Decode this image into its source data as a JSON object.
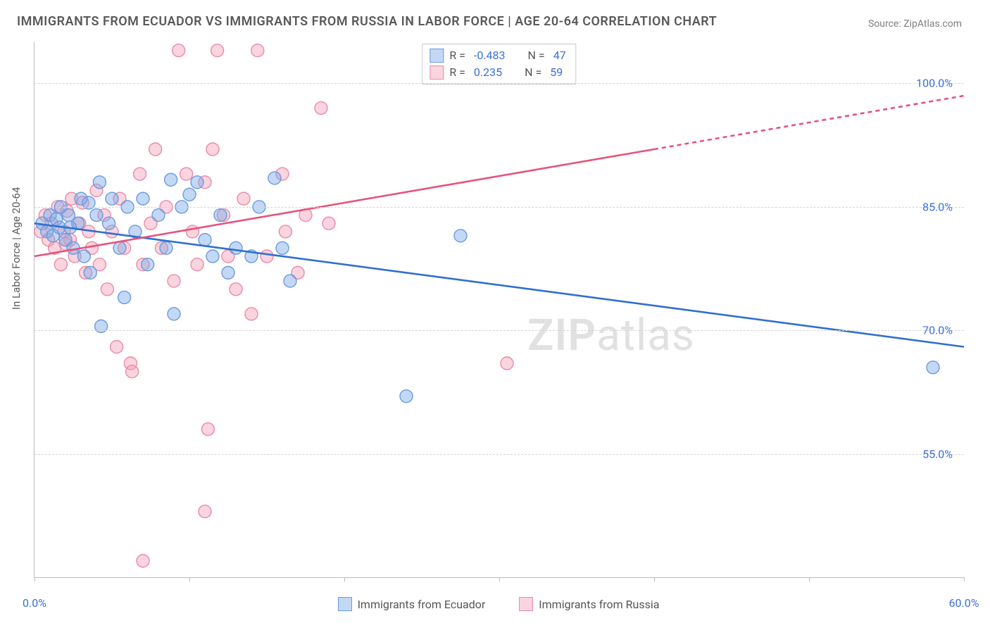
{
  "title": "IMMIGRANTS FROM ECUADOR VS IMMIGRANTS FROM RUSSIA IN LABOR FORCE | AGE 20-64 CORRELATION CHART",
  "source": "Source: ZipAtlas.com",
  "y_axis_label": "In Labor Force | Age 20-64",
  "watermark": "ZIPatlas",
  "chart": {
    "type": "scatter-with-regression",
    "xlim": [
      0,
      60
    ],
    "ylim": [
      40,
      105
    ],
    "x_ticks": [
      0,
      10,
      20,
      30,
      40,
      50,
      60
    ],
    "y_ticks": [
      55,
      70,
      85,
      100
    ],
    "x_tick_labels": {
      "0": "0.0%",
      "60": "60.0%"
    },
    "y_tick_labels": {
      "55": "55.0%",
      "70": "70.0%",
      "85": "85.0%",
      "100": "100.0%"
    },
    "grid_color": "#d5d5d5",
    "axis_color": "#bbbbbb",
    "plot_bg": "#ffffff",
    "tick_label_color": "#3b6fd6",
    "tick_label_fontsize": 16,
    "marker_radius": 9,
    "marker_stroke_width": 1.4,
    "line_width": 2.6
  },
  "series": {
    "ecuador": {
      "label": "Immigrants from Ecuador",
      "color_fill": "rgba(121,169,232,0.45)",
      "color_stroke": "#6a9be0",
      "line_color": "#2f6fd0",
      "R": "-0.483",
      "N": "47",
      "regression": {
        "x1": 0,
        "y1": 83.0,
        "x2": 60,
        "y2": 68.0,
        "dashed_from_x": null
      },
      "points": [
        [
          0.5,
          83
        ],
        [
          0.8,
          82
        ],
        [
          1.0,
          84
        ],
        [
          1.2,
          81.5
        ],
        [
          1.4,
          83.5
        ],
        [
          1.6,
          82.5
        ],
        [
          1.7,
          85
        ],
        [
          2.0,
          81
        ],
        [
          2.2,
          84
        ],
        [
          2.5,
          80
        ],
        [
          2.8,
          83
        ],
        [
          3.0,
          86
        ],
        [
          3.2,
          79
        ],
        [
          3.5,
          85.5
        ],
        [
          3.6,
          77
        ],
        [
          4.0,
          84
        ],
        [
          4.2,
          88
        ],
        [
          4.3,
          70.5
        ],
        [
          4.8,
          83
        ],
        [
          5.0,
          86
        ],
        [
          5.5,
          80
        ],
        [
          5.8,
          74
        ],
        [
          6.0,
          85
        ],
        [
          6.5,
          82
        ],
        [
          7.0,
          86
        ],
        [
          7.3,
          78
        ],
        [
          8.0,
          84
        ],
        [
          8.5,
          80
        ],
        [
          8.8,
          88.3
        ],
        [
          9.0,
          72
        ],
        [
          9.5,
          85
        ],
        [
          10.0,
          86.5
        ],
        [
          10.5,
          88
        ],
        [
          11.0,
          81
        ],
        [
          11.5,
          79
        ],
        [
          12.0,
          84
        ],
        [
          12.5,
          77
        ],
        [
          13.0,
          80
        ],
        [
          14.0,
          79
        ],
        [
          14.5,
          85
        ],
        [
          15.5,
          88.5
        ],
        [
          16.0,
          80
        ],
        [
          16.5,
          76
        ],
        [
          27.5,
          81.5
        ],
        [
          24.0,
          62
        ],
        [
          58.0,
          65.5
        ],
        [
          2.3,
          82.5
        ]
      ]
    },
    "russia": {
      "label": "Immigrants from Russia",
      "color_fill": "rgba(244,160,185,0.45)",
      "color_stroke": "#e98ba6",
      "line_color": "#e5537c",
      "R": "0.235",
      "N": "59",
      "regression": {
        "x1": 0,
        "y1": 79.0,
        "x2": 60,
        "y2": 98.5,
        "dashed_from_x": 40
      },
      "points": [
        [
          0.4,
          82
        ],
        [
          0.7,
          84
        ],
        [
          0.9,
          81
        ],
        [
          1.1,
          83
        ],
        [
          1.3,
          80
        ],
        [
          1.5,
          85
        ],
        [
          1.7,
          78
        ],
        [
          1.9,
          82
        ],
        [
          2.1,
          84.5
        ],
        [
          2.3,
          81
        ],
        [
          2.4,
          86
        ],
        [
          2.6,
          79
        ],
        [
          2.9,
          83
        ],
        [
          3.1,
          85.5
        ],
        [
          3.3,
          77
        ],
        [
          3.5,
          82
        ],
        [
          3.7,
          80
        ],
        [
          4.0,
          87
        ],
        [
          4.2,
          78
        ],
        [
          4.5,
          84
        ],
        [
          4.7,
          75
        ],
        [
          5.0,
          82
        ],
        [
          5.3,
          68
        ],
        [
          5.5,
          86
        ],
        [
          5.8,
          80
        ],
        [
          6.2,
          66
        ],
        [
          6.3,
          65
        ],
        [
          6.8,
          89
        ],
        [
          7.0,
          78
        ],
        [
          7.5,
          83
        ],
        [
          7.8,
          92
        ],
        [
          8.2,
          80
        ],
        [
          8.5,
          85
        ],
        [
          9.0,
          76
        ],
        [
          9.3,
          104
        ],
        [
          9.8,
          89
        ],
        [
          10.2,
          82
        ],
        [
          10.5,
          78
        ],
        [
          11.0,
          88
        ],
        [
          11.5,
          92
        ],
        [
          11.8,
          104
        ],
        [
          12.2,
          84
        ],
        [
          12.5,
          79
        ],
        [
          13.0,
          75
        ],
        [
          13.5,
          86
        ],
        [
          14.0,
          72
        ],
        [
          14.4,
          104
        ],
        [
          15.0,
          79
        ],
        [
          16.0,
          89
        ],
        [
          16.2,
          82
        ],
        [
          17.0,
          77
        ],
        [
          17.5,
          84
        ],
        [
          18.5,
          97
        ],
        [
          19.0,
          83
        ],
        [
          11.0,
          48
        ],
        [
          11.2,
          58
        ],
        [
          30.5,
          66
        ],
        [
          7.0,
          42
        ],
        [
          2.0,
          80.5
        ]
      ]
    }
  },
  "legend_top": {
    "r_label": "R =",
    "n_label": "N ="
  },
  "legend_bottom_order": [
    "ecuador",
    "russia"
  ]
}
